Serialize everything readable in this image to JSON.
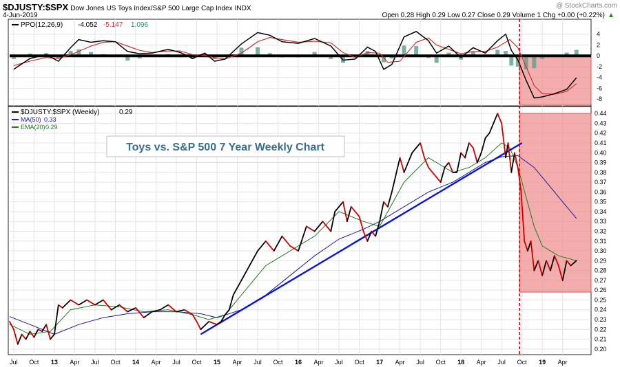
{
  "header": {
    "symbol": "$DJUSTY:$SPX",
    "name": "Dow Jones US Toys Index/S&P 500 Large Cap Index",
    "exchange": "INDX",
    "date": "4-Jun-2019",
    "quote": "Open 0.28  High 0.29  Low 0.27  Close 0.29  Volume 1  Chg +0.00 (+0.22%)",
    "quote_arrow": "▲",
    "credit": "@ StockCharts.com"
  },
  "colors": {
    "price_up": "#000000",
    "price_down": "#cc0000",
    "ma50": "#1a1a9e",
    "ema20": "#1f7a1f",
    "trendline": "#0a14d8",
    "highlight_fill": "#f08a8a",
    "highlight_border": "#e05050",
    "event_line": "#cc0000",
    "ppo_line": "#000000",
    "ppo_signal": "#cc3333",
    "ppo_hist": "#5f9e8c",
    "title_box_text": "#3a6f8a"
  },
  "annotation": {
    "title": "Toys vs. S&P 500 7 Year Weekly Chart"
  },
  "chart_data": [
    {
      "type": "line",
      "panel": "PPO",
      "label": "PPO(12,26,9)",
      "ppo_value": "-4.052",
      "signal_value": "-5.147",
      "hist_value": "1.096",
      "y_ticks": [
        "4",
        "2",
        "0",
        "-2",
        "-4",
        "-6",
        "-8"
      ],
      "ylim": [
        -9,
        6
      ],
      "xlim": [
        2012.45,
        2019.6
      ],
      "series": [
        {
          "name": "PPO",
          "x": [
            2012.5,
            2012.7,
            2012.9,
            2013.05,
            2013.2,
            2013.3,
            2013.45,
            2013.6,
            2013.75,
            2013.9,
            2014.05,
            2014.2,
            2014.4,
            2014.55,
            2014.7,
            2014.85,
            2014.97,
            2015.1,
            2015.3,
            2015.5,
            2015.65,
            2015.8,
            2016.0,
            2016.2,
            2016.4,
            2016.55,
            2016.7,
            2016.85,
            2016.95,
            2017.05,
            2017.15,
            2017.3,
            2017.45,
            2017.6,
            2017.7,
            2017.85,
            2018.0,
            2018.15,
            2018.3,
            2018.45,
            2018.55,
            2018.62,
            2018.7,
            2018.8,
            2018.9,
            2019.0,
            2019.15,
            2019.3,
            2019.42
          ],
          "y": [
            -2.5,
            -0.5,
            0.2,
            -1,
            1.5,
            3,
            2.5,
            2.8,
            2.6,
            0.8,
            0.4,
            0.5,
            1.2,
            0.6,
            -0.5,
            0.5,
            -1,
            -0.6,
            2.2,
            4.3,
            3.8,
            2.6,
            2.3,
            3.2,
            1.8,
            -0.8,
            -0.6,
            1.6,
            0.8,
            -2.5,
            -1.6,
            3.5,
            4.5,
            2.8,
            0.5,
            1.8,
            -0.3,
            1.5,
            0.5,
            2.8,
            4.0,
            1.0,
            -0.8,
            -4.5,
            -7.8,
            -7.6,
            -7.0,
            -6.2,
            -4.05
          ]
        },
        {
          "name": "Signal",
          "x": [
            2012.5,
            2012.7,
            2012.9,
            2013.05,
            2013.25,
            2013.45,
            2013.6,
            2013.75,
            2013.9,
            2014.05,
            2014.2,
            2014.4,
            2014.55,
            2014.7,
            2014.85,
            2014.97,
            2015.1,
            2015.3,
            2015.5,
            2015.65,
            2015.8,
            2016.0,
            2016.2,
            2016.4,
            2016.55,
            2016.7,
            2016.85,
            2017.0,
            2017.1,
            2017.25,
            2017.45,
            2017.6,
            2017.7,
            2017.85,
            2018.0,
            2018.15,
            2018.3,
            2018.45,
            2018.6,
            2018.7,
            2018.8,
            2018.9,
            2019.0,
            2019.15,
            2019.3,
            2019.42
          ],
          "y": [
            -1.8,
            -1.0,
            -0.3,
            -0.5,
            0.5,
            1.8,
            2.5,
            2.6,
            1.8,
            1.0,
            0.6,
            0.9,
            0.9,
            0.2,
            0.1,
            -0.4,
            -0.6,
            0.5,
            2.6,
            3.4,
            3.0,
            2.5,
            2.7,
            2.4,
            0.6,
            -0.3,
            0.6,
            0.5,
            -1.2,
            -1.0,
            2.5,
            3.3,
            2.0,
            1.2,
            0.4,
            0.8,
            0.8,
            1.6,
            3.0,
            1.5,
            -2.0,
            -5.5,
            -7.0,
            -7.1,
            -6.6,
            -5.15
          ]
        },
        {
          "name": "Histogram",
          "x": [
            2012.5,
            2012.7,
            2012.9,
            2013.05,
            2013.2,
            2013.3,
            2013.45,
            2013.6,
            2013.75,
            2013.9,
            2014.05,
            2014.2,
            2014.4,
            2014.55,
            2014.7,
            2014.85,
            2014.97,
            2015.1,
            2015.3,
            2015.5,
            2015.65,
            2015.8,
            2016.0,
            2016.2,
            2016.4,
            2016.55,
            2016.7,
            2016.85,
            2016.95,
            2017.05,
            2017.15,
            2017.3,
            2017.45,
            2017.6,
            2017.7,
            2017.85,
            2018.0,
            2018.15,
            2018.3,
            2018.45,
            2018.55,
            2018.62,
            2018.7,
            2018.8,
            2018.9,
            2019.0,
            2019.15,
            2019.3,
            2019.42
          ],
          "y": [
            -0.6,
            0.4,
            0.5,
            -0.5,
            0.9,
            1.2,
            0.7,
            0.3,
            0.1,
            -0.9,
            -0.5,
            -0.1,
            0.3,
            -0.3,
            -0.6,
            0.4,
            -0.6,
            -0.1,
            1.5,
            1.6,
            0.5,
            -0.3,
            -0.3,
            0.7,
            -0.6,
            -1.3,
            -0.3,
            0.9,
            0.2,
            -1.2,
            -0.5,
            1.9,
            1.8,
            -0.4,
            -1.3,
            0.6,
            -0.7,
            0.7,
            -0.2,
            1.1,
            0.9,
            -1.8,
            -2.0,
            -2.5,
            -2.3,
            -0.6,
            0.1,
            0.6,
            1.1
          ]
        }
      ]
    },
    {
      "type": "line",
      "panel": "price",
      "label": "$DJUSTY:$SPX (Weekly)",
      "price_value": "0.29",
      "ma_label": "MA(50)",
      "ma_value": "0.33",
      "ema_label": "EMA(20)",
      "ema_value": "0.29",
      "y_ticks": [
        "0.44",
        "0.43",
        "0.42",
        "0.41",
        "0.40",
        "0.39",
        "0.38",
        "0.37",
        "0.36",
        "0.35",
        "0.34",
        "0.33",
        "0.32",
        "0.31",
        "0.30",
        "0.29",
        "0.28",
        "0.27",
        "0.26",
        "0.25",
        "0.24",
        "0.23",
        "0.22",
        "0.21",
        "0.20"
      ],
      "ylim": [
        0.195,
        0.445
      ],
      "xlim": [
        2012.45,
        2019.6
      ],
      "x_tick_labels": [
        "Jul",
        "Oct",
        "13",
        "Apr",
        "Jul",
        "Oct",
        "14",
        "Apr",
        "Jul",
        "Oct",
        "15",
        "Apr",
        "Jul",
        "Oct",
        "16",
        "Apr",
        "Jul",
        "Oct",
        "17",
        "Apr",
        "Jul",
        "Oct",
        "18",
        "Apr",
        "Jul",
        "Oct",
        "19",
        "Apr"
      ],
      "x_tick_values": [
        2012.5,
        2012.75,
        2013.0,
        2013.25,
        2013.5,
        2013.75,
        2014.0,
        2014.25,
        2014.5,
        2014.75,
        2015.0,
        2015.25,
        2015.5,
        2015.75,
        2016.0,
        2016.25,
        2016.5,
        2016.75,
        2017.0,
        2017.25,
        2017.5,
        2017.75,
        2018.0,
        2018.25,
        2018.5,
        2018.75,
        2019.0,
        2019.25
      ],
      "series": [
        {
          "name": "$DJUSTY:$SPX",
          "x": [
            2012.45,
            2012.5,
            2012.55,
            2012.6,
            2012.65,
            2012.7,
            2012.75,
            2012.8,
            2012.85,
            2012.9,
            2012.95,
            2013.0,
            2013.05,
            2013.1,
            2013.2,
            2013.3,
            2013.4,
            2013.5,
            2013.6,
            2013.7,
            2013.8,
            2013.9,
            2014.0,
            2014.1,
            2014.2,
            2014.3,
            2014.4,
            2014.5,
            2014.6,
            2014.7,
            2014.75,
            2014.8,
            2014.9,
            2015.0,
            2015.05,
            2015.1,
            2015.15,
            2015.2,
            2015.3,
            2015.4,
            2015.5,
            2015.6,
            2015.7,
            2015.8,
            2015.9,
            2016.0,
            2016.1,
            2016.2,
            2016.3,
            2016.4,
            2016.45,
            2016.5,
            2016.55,
            2016.6,
            2016.65,
            2016.7,
            2016.75,
            2016.8,
            2016.85,
            2016.9,
            2016.95,
            2017.0,
            2017.05,
            2017.1,
            2017.15,
            2017.25,
            2017.3,
            2017.35,
            2017.4,
            2017.45,
            2017.5,
            2017.55,
            2017.6,
            2017.65,
            2017.7,
            2017.75,
            2017.8,
            2017.85,
            2017.9,
            2017.95,
            2018.0,
            2018.05,
            2018.1,
            2018.15,
            2018.2,
            2018.25,
            2018.3,
            2018.35,
            2018.4,
            2018.45,
            2018.5,
            2018.55,
            2018.58,
            2018.62,
            2018.66,
            2018.7,
            2018.74,
            2018.78,
            2018.82,
            2018.86,
            2018.9,
            2018.95,
            2019.0,
            2019.05,
            2019.1,
            2019.15,
            2019.2,
            2019.25,
            2019.3,
            2019.35,
            2019.42
          ],
          "y": [
            0.228,
            0.22,
            0.205,
            0.215,
            0.21,
            0.218,
            0.212,
            0.22,
            0.218,
            0.225,
            0.21,
            0.215,
            0.245,
            0.242,
            0.25,
            0.245,
            0.25,
            0.245,
            0.25,
            0.24,
            0.245,
            0.238,
            0.242,
            0.232,
            0.238,
            0.24,
            0.245,
            0.238,
            0.24,
            0.235,
            0.228,
            0.22,
            0.228,
            0.225,
            0.228,
            0.235,
            0.24,
            0.255,
            0.27,
            0.285,
            0.3,
            0.31,
            0.3,
            0.315,
            0.305,
            0.3,
            0.325,
            0.32,
            0.33,
            0.32,
            0.34,
            0.345,
            0.35,
            0.33,
            0.345,
            0.34,
            0.335,
            0.32,
            0.31,
            0.32,
            0.315,
            0.33,
            0.35,
            0.345,
            0.36,
            0.395,
            0.38,
            0.39,
            0.4,
            0.405,
            0.41,
            0.395,
            0.385,
            0.38,
            0.375,
            0.37,
            0.385,
            0.39,
            0.38,
            0.38,
            0.4,
            0.395,
            0.41,
            0.405,
            0.39,
            0.4,
            0.415,
            0.42,
            0.43,
            0.44,
            0.43,
            0.395,
            0.41,
            0.38,
            0.4,
            0.385,
            0.36,
            0.31,
            0.3,
            0.31,
            0.28,
            0.29,
            0.275,
            0.29,
            0.28,
            0.295,
            0.285,
            0.27,
            0.29,
            0.285,
            0.29
          ]
        },
        {
          "name": "MA(50)",
          "x": [
            2012.45,
            2012.7,
            2013.0,
            2013.3,
            2013.6,
            2013.9,
            2014.2,
            2014.5,
            2014.8,
            2015.0,
            2015.3,
            2015.6,
            2015.9,
            2016.2,
            2016.5,
            2016.8,
            2017.0,
            2017.3,
            2017.6,
            2017.9,
            2018.1,
            2018.3,
            2018.5,
            2018.7,
            2018.9,
            2019.1,
            2019.3,
            2019.42
          ],
          "y": [
            0.233,
            0.225,
            0.215,
            0.225,
            0.232,
            0.236,
            0.238,
            0.238,
            0.236,
            0.232,
            0.24,
            0.255,
            0.275,
            0.295,
            0.312,
            0.322,
            0.33,
            0.345,
            0.36,
            0.37,
            0.38,
            0.39,
            0.396,
            0.397,
            0.385,
            0.365,
            0.345,
            0.333
          ]
        },
        {
          "name": "EMA(20)",
          "x": [
            2012.45,
            2012.7,
            2012.95,
            2013.2,
            2013.5,
            2013.8,
            2014.1,
            2014.4,
            2014.7,
            2014.9,
            2015.1,
            2015.3,
            2015.6,
            2015.9,
            2016.2,
            2016.5,
            2016.8,
            2017.0,
            2017.3,
            2017.6,
            2017.9,
            2018.1,
            2018.3,
            2018.5,
            2018.6,
            2018.7,
            2018.8,
            2018.9,
            2019.0,
            2019.2,
            2019.42
          ],
          "y": [
            0.225,
            0.215,
            0.218,
            0.24,
            0.245,
            0.243,
            0.238,
            0.24,
            0.235,
            0.23,
            0.235,
            0.255,
            0.285,
            0.3,
            0.315,
            0.34,
            0.33,
            0.325,
            0.37,
            0.395,
            0.38,
            0.385,
            0.395,
            0.41,
            0.405,
            0.385,
            0.355,
            0.325,
            0.305,
            0.295,
            0.29
          ]
        },
        {
          "name": "Trendline",
          "x": [
            2014.8,
            2018.75
          ],
          "y": [
            0.215,
            0.41
          ]
        }
      ],
      "highlight_region": {
        "x": [
          2018.72,
          2019.6
        ],
        "y": [
          0.258,
          0.44
        ]
      },
      "event_date_x": 2018.72
    }
  ]
}
